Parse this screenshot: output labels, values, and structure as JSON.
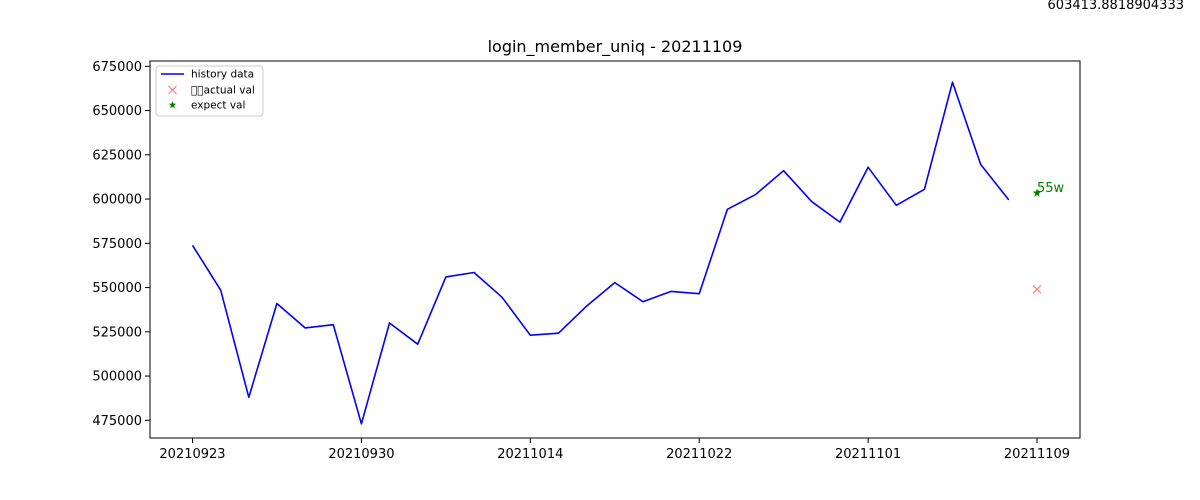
{
  "corner_value": "603413.8818904333",
  "chart_data": {
    "type": "line",
    "title": "login_member_uniq - 20211109",
    "xlabel": "",
    "ylabel": "",
    "x_tick_labels": [
      "20210923",
      "20210930",
      "20211014",
      "20211022",
      "20211101",
      "20211109"
    ],
    "x_tick_indices": [
      0,
      6,
      12,
      18,
      24,
      30
    ],
    "ylim": [
      465000,
      678000
    ],
    "y_ticks": [
      475000,
      500000,
      525000,
      550000,
      575000,
      600000,
      625000,
      650000,
      675000
    ],
    "grid": false,
    "legend_position": "top-left",
    "series": [
      {
        "name": "history data",
        "color": "#0000ff",
        "x": [
          0,
          1,
          2,
          3,
          4,
          5,
          6,
          7,
          8,
          9,
          10,
          11,
          12,
          13,
          14,
          15,
          16,
          17,
          18,
          19,
          20,
          21,
          22,
          23,
          24,
          25,
          26,
          27,
          28,
          29
        ],
        "values": [
          573900,
          548500,
          488000,
          541000,
          527200,
          529000,
          473000,
          530000,
          518000,
          556000,
          558500,
          544500,
          523100,
          524200,
          539500,
          552800,
          542000,
          547800,
          546500,
          594200,
          602500,
          616000,
          598500,
          587000,
          618000,
          596500,
          605500,
          666000,
          619500,
          599500
        ]
      }
    ],
    "markers": [
      {
        "name": "\u0000\u0000actual val",
        "marker": "x",
        "color": "#ff7f7f",
        "x": 30,
        "y": 549000
      },
      {
        "name": "expect val",
        "marker": "star",
        "color": "#008000",
        "x": 30,
        "y": 603414
      }
    ],
    "annotations": [
      {
        "text": "55w",
        "x": 30,
        "y": 603414,
        "color": "#008000"
      }
    ]
  }
}
